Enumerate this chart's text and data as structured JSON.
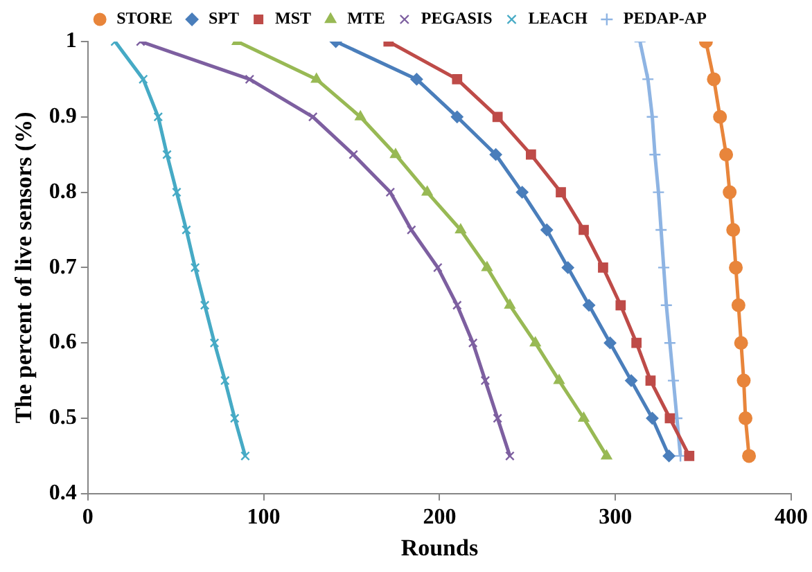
{
  "chart_data": {
    "type": "line",
    "xlabel": "Rounds",
    "ylabel": "The percent of live sensors (%)",
    "xlim": [
      0,
      400
    ],
    "xticks": [
      0,
      100,
      200,
      300,
      400
    ],
    "ylim": [
      0.4,
      1
    ],
    "yticks": [
      0.4,
      0.5,
      0.6,
      0.7,
      0.8,
      0.9,
      1
    ],
    "grid": false,
    "legend": "top",
    "line_style": "solid",
    "series": [
      {
        "name": "STORE",
        "color": "#e8853b",
        "marker": "circle",
        "x": [
          351.5,
          356,
          359.5,
          363,
          365,
          367,
          368.5,
          370,
          371.5,
          373,
          374,
          376
        ],
        "values": [
          1,
          0.95,
          0.9,
          0.85,
          0.8,
          0.75,
          0.7,
          0.65,
          0.6,
          0.55,
          0.5,
          0.45
        ]
      },
      {
        "name": "SPT",
        "color": "#4a7ebb",
        "marker": "diamond",
        "x": [
          141,
          187,
          210,
          232,
          247,
          261,
          273,
          285,
          297,
          309,
          321,
          330.5
        ],
        "values": [
          1,
          0.95,
          0.9,
          0.85,
          0.8,
          0.75,
          0.7,
          0.65,
          0.6,
          0.55,
          0.5,
          0.45
        ]
      },
      {
        "name": "MST",
        "color": "#be4b48",
        "marker": "square",
        "x": [
          171,
          210,
          233,
          252,
          269,
          282,
          293,
          303,
          312,
          320,
          331,
          342
        ],
        "values": [
          1,
          0.95,
          0.9,
          0.85,
          0.8,
          0.75,
          0.7,
          0.65,
          0.6,
          0.55,
          0.5,
          0.45
        ]
      },
      {
        "name": "MTE",
        "color": "#98b954",
        "marker": "triangle",
        "x": [
          85,
          130,
          155,
          175,
          193,
          212,
          227,
          240,
          254.5,
          268,
          282,
          295
        ],
        "values": [
          1,
          0.95,
          0.9,
          0.85,
          0.8,
          0.75,
          0.7,
          0.65,
          0.6,
          0.55,
          0.5,
          0.45
        ]
      },
      {
        "name": "PEGASIS",
        "color": "#7d5fa0",
        "marker": "cross",
        "x": [
          30,
          92,
          128,
          151,
          172,
          184,
          199,
          210,
          219,
          226,
          233,
          240
        ],
        "values": [
          1,
          0.95,
          0.9,
          0.85,
          0.8,
          0.75,
          0.7,
          0.65,
          0.6,
          0.55,
          0.5,
          0.45
        ]
      },
      {
        "name": "LEACH",
        "color": "#46aac5",
        "marker": "cross",
        "x": [
          15.5,
          31.5,
          40,
          45,
          50.5,
          56,
          61,
          66.5,
          72,
          78,
          83.5,
          89.5
        ],
        "values": [
          1,
          0.95,
          0.9,
          0.85,
          0.8,
          0.75,
          0.7,
          0.65,
          0.6,
          0.55,
          0.5,
          0.45
        ]
      },
      {
        "name": "PEDAP-AP",
        "color": "#8eb4e3",
        "marker": "plus",
        "x": [
          314,
          318.5,
          321,
          322.5,
          324.5,
          326,
          327.5,
          329,
          331,
          333,
          335,
          337
        ],
        "values": [
          1,
          0.95,
          0.9,
          0.85,
          0.8,
          0.75,
          0.7,
          0.65,
          0.6,
          0.55,
          0.5,
          0.45
        ]
      }
    ]
  }
}
